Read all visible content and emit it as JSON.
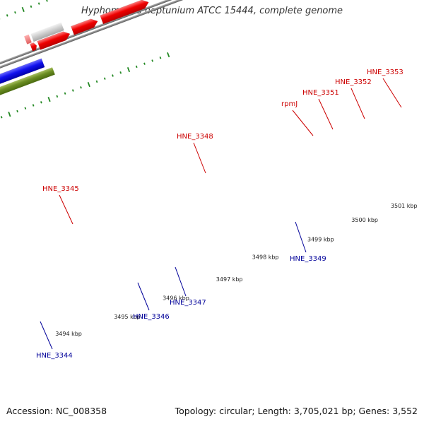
{
  "title": "Hyphomonas neptunium ATCC 15444, complete genome",
  "footer": {
    "accession": "Accession: NC_008358",
    "summary": "Topology: circular; Length: 3,705,021 bp; Genes: 3,552"
  },
  "colors": {
    "forward_label": "#cc0000",
    "reverse_label": "#000099",
    "backbone": "#888888",
    "tick": "#228822"
  },
  "ticks": [
    "3494 kbp",
    "3495 kbp",
    "3496 kbp",
    "3497 kbp",
    "3498 kbp",
    "3499 kbp",
    "3500 kbp",
    "3501 kbp"
  ],
  "genes_forward": [
    "HNE_3345",
    "HNE_3348",
    "rpmJ",
    "HNE_3351",
    "HNE_3352",
    "HNE_3353"
  ],
  "genes_reverse": [
    "HNE_3344",
    "HNE_3346",
    "HNE_3347",
    "HNE_3349"
  ]
}
